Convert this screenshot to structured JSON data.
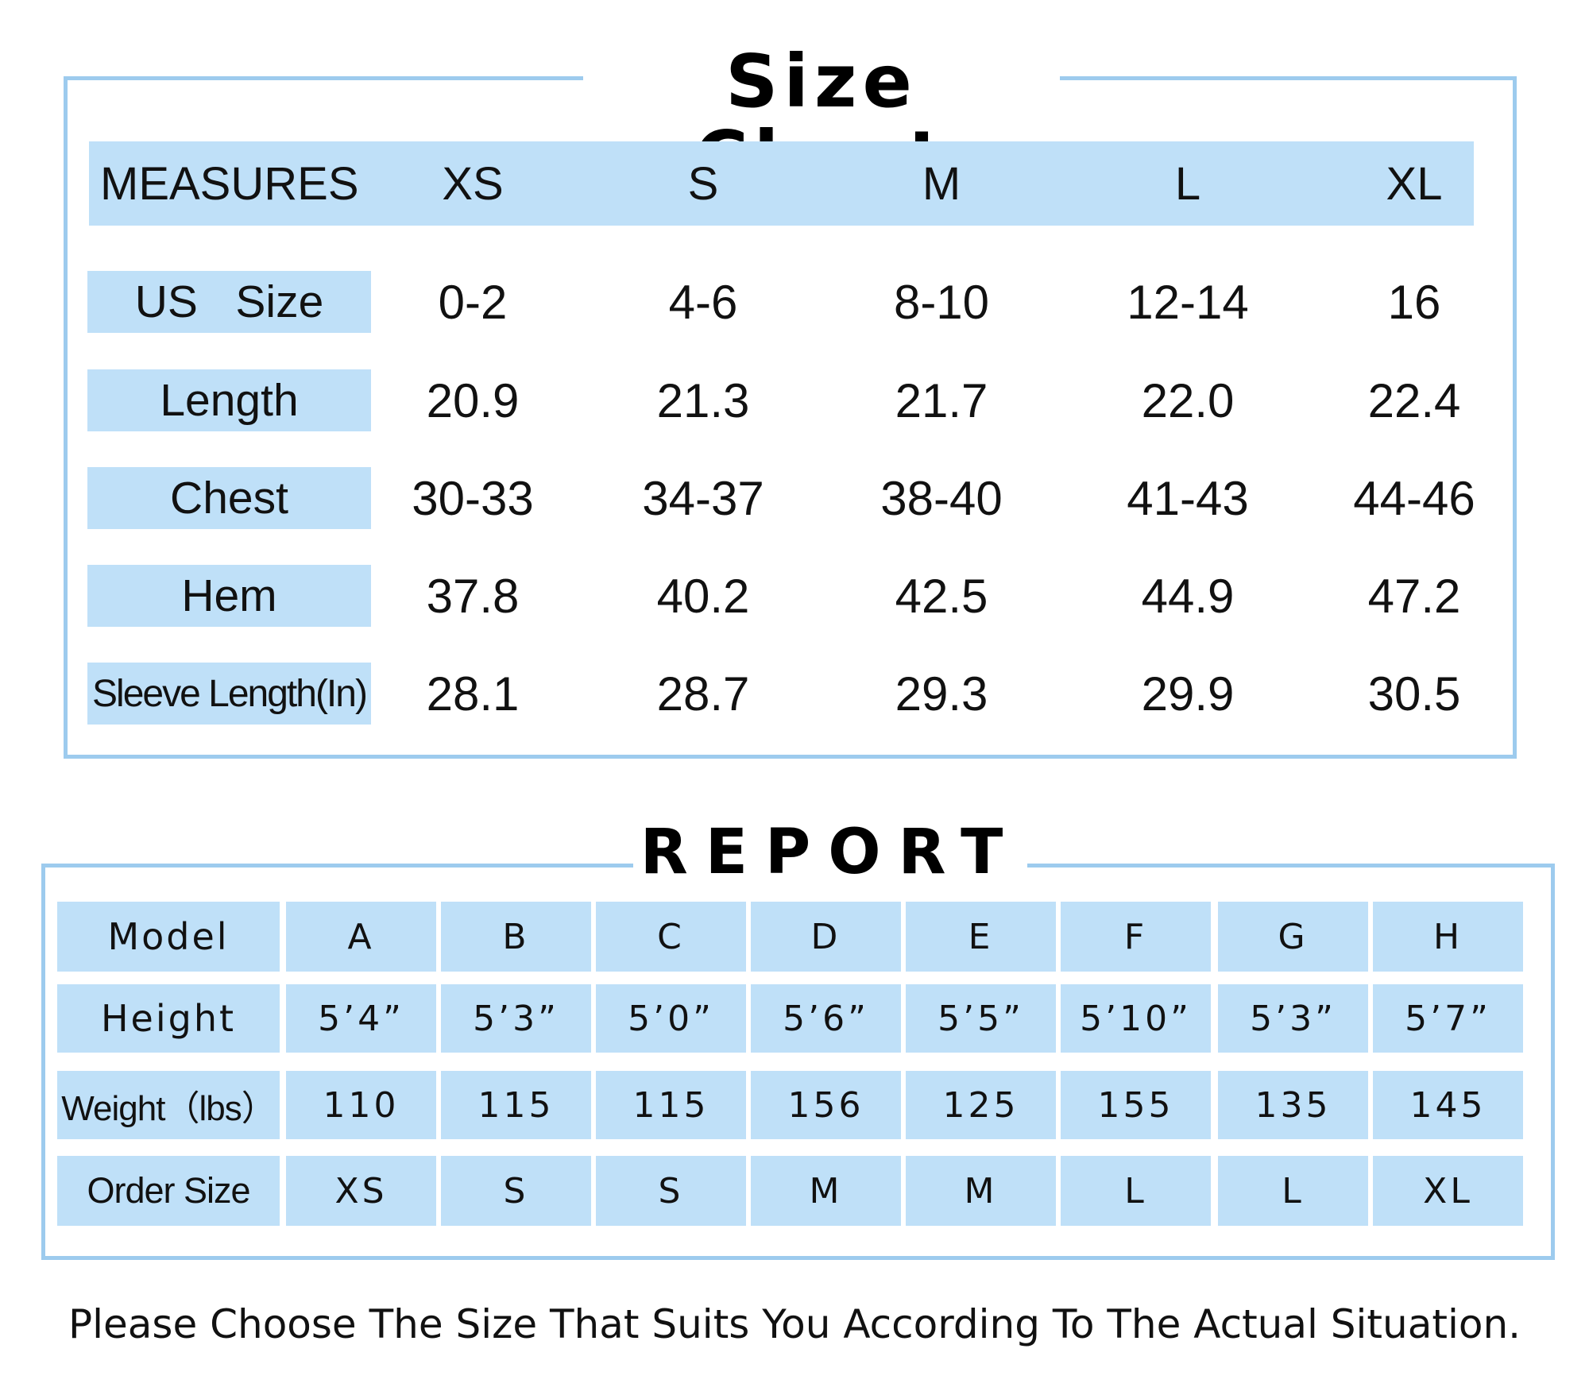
{
  "size_chart": {
    "title": "Size Chart",
    "header": [
      "MEASURES",
      "XS",
      "S",
      "M",
      "L",
      "XL"
    ],
    "rows": [
      {
        "label": "US   Size",
        "values": [
          "0-2",
          "4-6",
          "8-10",
          "12-14",
          "16"
        ]
      },
      {
        "label": "Length",
        "values": [
          "20.9",
          "21.3",
          "21.7",
          "22.0",
          "22.4"
        ]
      },
      {
        "label": "Chest",
        "values": [
          "30-33",
          "34-37",
          "38-40",
          "41-43",
          "44-46"
        ]
      },
      {
        "label": "Hem",
        "values": [
          "37.8",
          "40.2",
          "42.5",
          "44.9",
          "47.2"
        ]
      },
      {
        "label": "Sleeve Length(In)",
        "values": [
          "28.1",
          "28.7",
          "29.3",
          "29.9",
          "30.5"
        ]
      }
    ]
  },
  "report": {
    "title": "REPORT",
    "rows": [
      {
        "label": "Model",
        "values": [
          "A",
          "B",
          "C",
          "D",
          "E",
          "F",
          "G",
          "H"
        ]
      },
      {
        "label": "Height",
        "values": [
          "5’4”",
          "5’3”",
          "5’0”",
          "5’6”",
          "5’5”",
          "5’10”",
          "5’3”",
          "5’7”"
        ]
      },
      {
        "label": "Weight（lbs）",
        "values": [
          "110",
          "115",
          "115",
          "156",
          "125",
          "155",
          "135",
          "145"
        ]
      },
      {
        "label": "Order Size",
        "values": [
          "XS",
          "S",
          "S",
          "M",
          "M",
          "L",
          "L",
          "XL"
        ]
      }
    ]
  },
  "footer": "Please Choose The Size That Suits You According To The Actual Situation.",
  "colors": {
    "accent": "#bfe0f8",
    "border": "#9dcbee",
    "text": "#111111"
  }
}
